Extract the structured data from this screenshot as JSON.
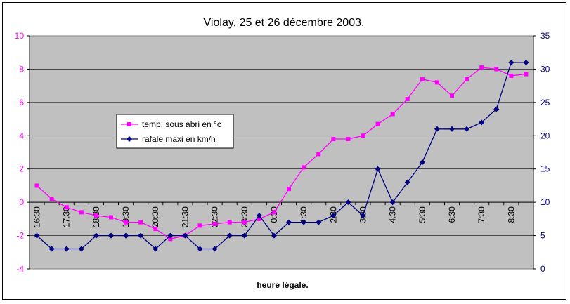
{
  "chart_data": {
    "type": "line",
    "title": "Violay, 25 et 26 décembre 2003.",
    "xlabel": "heure légale.",
    "ylabel": "",
    "categories": [
      "16:30",
      "17:00",
      "17:30",
      "18:00",
      "18:30",
      "19:00",
      "19:30",
      "20:00",
      "20:30",
      "21:00",
      "21:30",
      "22:00",
      "22:30",
      "23:00",
      "23:30",
      "0:00",
      "0:30",
      "1:00",
      "1:30",
      "2:00",
      "2:30",
      "3:00",
      "3:30",
      "4:00",
      "4:30",
      "5:00",
      "5:30",
      "6:00",
      "6:30",
      "7:00",
      "7:30",
      "8:00",
      "8:30",
      "9:00"
    ],
    "tick_labels": [
      "16:30",
      "17:30",
      "18:30",
      "19:30",
      "20:30",
      "21:30",
      "22:30",
      "23:30",
      "0:30",
      "1:30",
      "2:30",
      "3:30",
      "4:30",
      "5:30",
      "6:30",
      "7:30",
      "8:30"
    ],
    "y_left": {
      "min": -4,
      "max": 10,
      "step": 2,
      "ticks": [
        "-4",
        "-2",
        "0",
        "2",
        "4",
        "6",
        "8",
        "10"
      ],
      "color": "#ff00ff"
    },
    "y_right": {
      "min": 0,
      "max": 35,
      "step": 5,
      "ticks": [
        "0",
        "5",
        "10",
        "15",
        "20",
        "25",
        "30",
        "35"
      ],
      "color": "#000080"
    },
    "plot_background": "#c0c0c0",
    "grid": true,
    "legend_position": "left-middle",
    "series": [
      {
        "name": "temp. sous abri en °c",
        "axis": "left",
        "color": "#ff00ff",
        "marker": "square",
        "values": [
          1.0,
          0.2,
          -0.3,
          -0.6,
          -0.8,
          -0.9,
          -1.2,
          -1.2,
          -1.6,
          -2.2,
          -2.0,
          -1.4,
          -1.3,
          -1.2,
          -1.2,
          -1.0,
          -0.6,
          0.8,
          2.1,
          2.9,
          3.8,
          3.8,
          4.0,
          4.7,
          5.3,
          6.2,
          7.4,
          7.2,
          6.4,
          7.4,
          8.1,
          8.0,
          7.6,
          7.7
        ]
      },
      {
        "name": "rafale maxi en km/h",
        "axis": "right",
        "color": "#000080",
        "marker": "diamond",
        "values": [
          5,
          3,
          3,
          3,
          5,
          5,
          5,
          5,
          3,
          5,
          5,
          3,
          3,
          5,
          5,
          8,
          5,
          7,
          7,
          7,
          8,
          10,
          8,
          15,
          10,
          13,
          16,
          21,
          21,
          21,
          22,
          24,
          31,
          31
        ]
      }
    ]
  }
}
